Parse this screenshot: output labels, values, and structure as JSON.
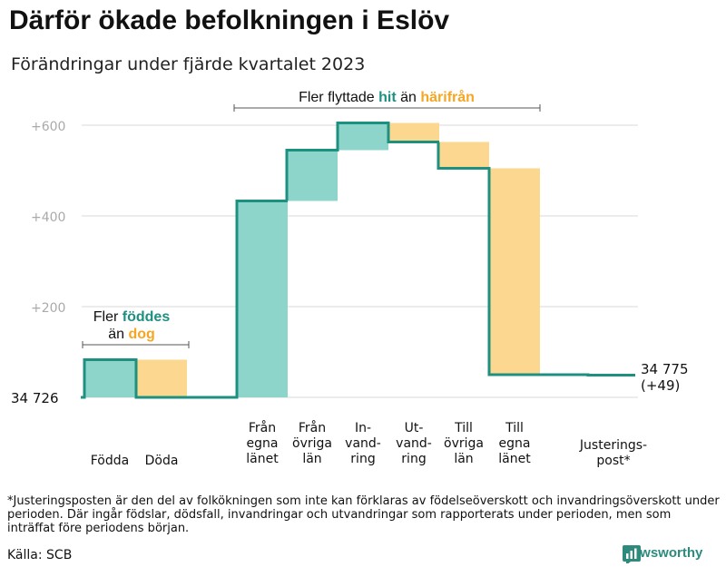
{
  "header": {
    "title": "Därför ökade befolkningen i Eslöv",
    "subtitle": "Förändringar under fjärde kvartalet 2023"
  },
  "colors": {
    "teal": "#1e9080",
    "teal_fill": "#8dd5cb",
    "orange": "#f5a623",
    "orange_fill": "#fbd78f",
    "grid": "#d9d9d9"
  },
  "chart_data": {
    "type": "waterfall",
    "title": "Därför ökade befolkningen i Eslöv",
    "subtitle": "Förändringar under fjärde kvartalet 2023",
    "start_label": "34  726",
    "start_value": 34726,
    "end_label": "34 775",
    "end_change_label": "(+49)",
    "end_value": 34775,
    "y_relative_range": [
      0,
      620
    ],
    "y_ticks": [
      200,
      400,
      600
    ],
    "y_tick_labels": [
      "+200",
      "+400",
      "+600"
    ],
    "groups": [
      {
        "name": "births_deaths",
        "annotation": {
          "prefix": "Fler",
          "teal_word": "föddes",
          "line2": "än",
          "orange_word": "dog"
        },
        "bars": [
          {
            "label": [
              "Födda"
            ],
            "change": 83,
            "kind": "increase"
          },
          {
            "label": [
              "Döda"
            ],
            "change": -83,
            "kind": "decrease"
          }
        ]
      },
      {
        "name": "migration",
        "annotation": {
          "prefix": "Fler flyttade",
          "teal_word": "hit",
          "middle": "än",
          "orange_word": "härifrån"
        },
        "bars": [
          {
            "label": [
              "Från",
              "egna",
              "länet"
            ],
            "change": 433,
            "kind": "increase"
          },
          {
            "label": [
              "Från",
              "övriga",
              "län"
            ],
            "change": 112,
            "kind": "increase"
          },
          {
            "label": [
              "In-",
              "vand-",
              "ring"
            ],
            "change": 60,
            "kind": "increase"
          },
          {
            "label": [
              "Ut-",
              "vand-",
              "ring"
            ],
            "change": -42,
            "kind": "decrease"
          },
          {
            "label": [
              "Till",
              "övriga",
              "län"
            ],
            "change": -58,
            "kind": "decrease"
          },
          {
            "label": [
              "Till",
              "egna",
              "länet"
            ],
            "change": -455,
            "kind": "decrease"
          }
        ]
      },
      {
        "name": "adjustment",
        "bars": [
          {
            "label": [
              "Justerings-",
              "post*"
            ],
            "change": -1,
            "kind": "adjustment"
          }
        ]
      }
    ]
  },
  "footer": {
    "footnote": "*Justeringsposten är den del av folkökningen som inte kan förklaras av födelseöverskott och invandringsöverskott under perioden. Där ingår födslar, dödsfall, invandringar och utvandringar som rapporterats under perioden, men som inträffat före periodens början.",
    "source": "Källa: SCB",
    "brand": "Newsworthy"
  }
}
